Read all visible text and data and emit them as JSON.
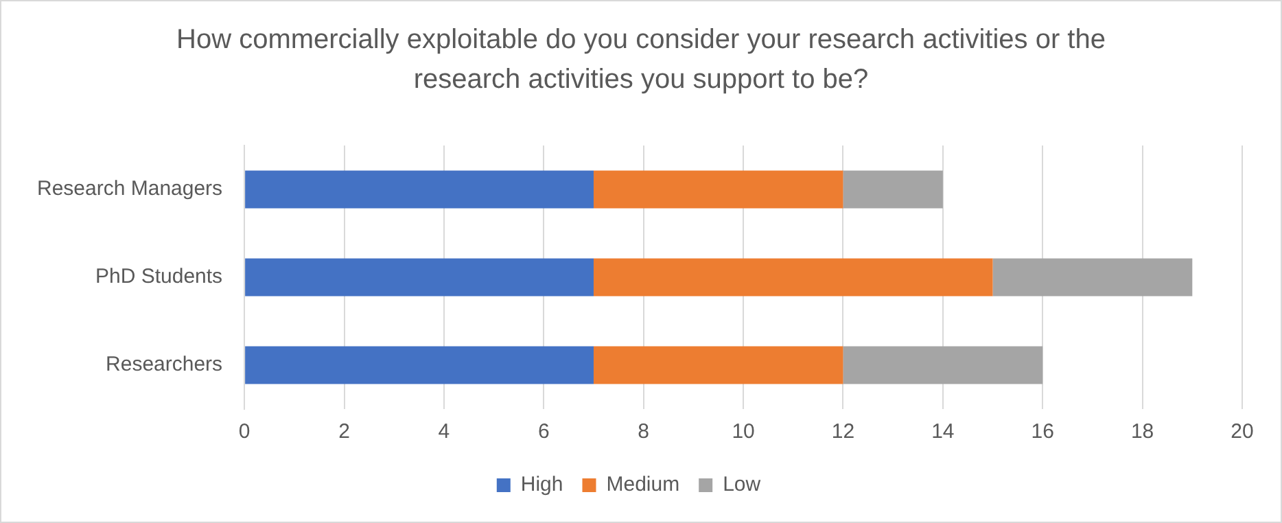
{
  "chart_data": {
    "type": "bar",
    "orientation": "horizontal",
    "stacked": true,
    "title": "How commercially exploitable do you consider your research activities or the research activities you support to be?",
    "categories": [
      "Research Managers",
      "PhD Students",
      "Researchers"
    ],
    "series": [
      {
        "name": "High",
        "color": "#4472c4",
        "values": [
          7,
          7,
          7
        ]
      },
      {
        "name": "Medium",
        "color": "#ed7d31",
        "values": [
          5,
          8,
          5
        ]
      },
      {
        "name": "Low",
        "color": "#a5a5a5",
        "values": [
          2,
          4,
          4
        ]
      }
    ],
    "xlim": [
      0,
      20
    ],
    "xticks": [
      0,
      2,
      4,
      6,
      8,
      10,
      12,
      14,
      16,
      18,
      20
    ],
    "grid": "x",
    "legend": "bottom"
  }
}
